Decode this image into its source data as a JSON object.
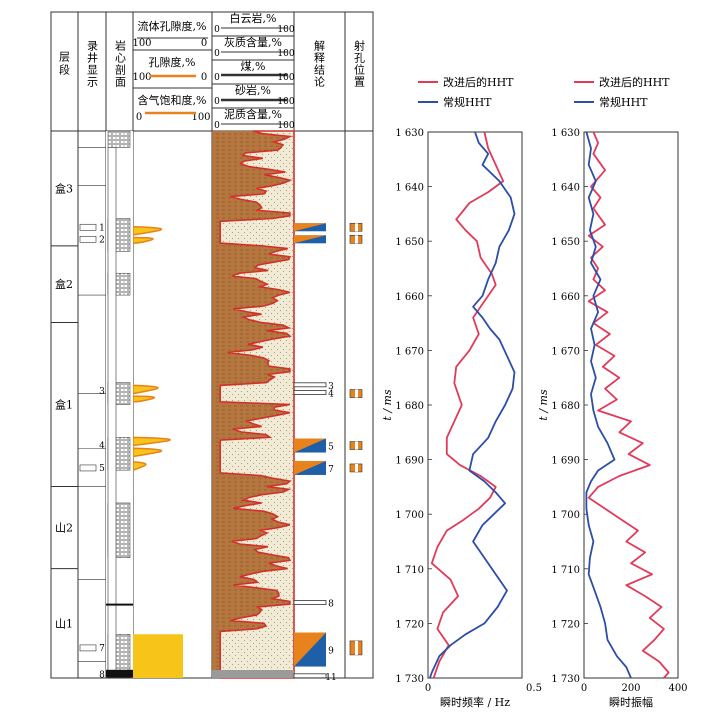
{
  "log_panel": {
    "headers": {
      "layer": "层段",
      "log_display": "录井显示",
      "core": "岩心剖面",
      "fluid_porosity": "流体孔隙度,%",
      "fluid_porosity_min": "100",
      "fluid_porosity_max": "0",
      "porosity": "孔隙度,%",
      "porosity_min": "100",
      "porosity_max": "0",
      "gas_saturation": "含气饱和度,%",
      "gas_saturation_min": "0",
      "gas_saturation_max": "100",
      "dolomite": "白云岩,%",
      "limestone": "灰质含量,%",
      "coal": "煤,%",
      "sandstone": "砂岩,%",
      "mudstone": "泥质含量,%",
      "pct_min": "0",
      "pct_max": "100",
      "interpretation": "解释结论",
      "perforation": "射孔位置"
    },
    "layers": [
      {
        "name": "盒3",
        "top": 1630,
        "bottom": 1651
      },
      {
        "name": "盒2",
        "top": 1651,
        "bottom": 1665
      },
      {
        "name": "盒1",
        "top": 1665,
        "bottom": 1695
      },
      {
        "name": "山2",
        "top": 1695,
        "bottom": 1710
      },
      {
        "name": "山1",
        "top": 1710,
        "bottom": 1730
      }
    ],
    "log_display_numbers": [
      {
        "label": "1",
        "depth": 1647.6
      },
      {
        "label": "2",
        "depth": 1649.8
      },
      {
        "label": "3",
        "depth": 1677.5
      },
      {
        "label": "4",
        "depth": 1687.5
      },
      {
        "label": "5",
        "depth": 1691.6
      },
      {
        "label": "7",
        "depth": 1724.5
      },
      {
        "label": "8",
        "depth": 1729.4
      }
    ],
    "interpretation_numbers": [
      {
        "label": "3",
        "depth": 1676.4
      },
      {
        "label": "4",
        "depth": 1677.8
      },
      {
        "label": "5",
        "depth": 1687.5
      },
      {
        "label": "7",
        "depth": 1691.6
      },
      {
        "label": "8",
        "depth": 1716.2
      },
      {
        "label": "9",
        "depth": 1724.8
      },
      {
        "label": "11",
        "depth": 1729.6
      }
    ],
    "colors": {
      "mud": "#b5773f",
      "sand": "#f1ead4",
      "red_curve": "#d4302a",
      "yellow_fill": "#f7c41a",
      "orange_curve": "#e8821c",
      "blue": "#1f5fa8",
      "gray": "#9a9a9a"
    }
  },
  "chart_data": [
    {
      "type": "line",
      "title": "",
      "xlabel": "瞬时频率 / Hz",
      "ylabel": "t / ms",
      "xlim": [
        0,
        0.5
      ],
      "ylim": [
        1630,
        1730
      ],
      "x_ticks": [
        "0",
        "0.5"
      ],
      "y_ticks": [
        "1 630",
        "1 640",
        "1 650",
        "1 660",
        "1 670",
        "1 680",
        "1 690",
        "1 700",
        "1 710",
        "1 720",
        "1 730"
      ],
      "legend": "top",
      "series": [
        {
          "name": "改进后的HHT",
          "color": "#e23a5a",
          "points": [
            [
              0.3,
              1630
            ],
            [
              0.32,
              1633
            ],
            [
              0.36,
              1636
            ],
            [
              0.4,
              1639
            ],
            [
              0.32,
              1641
            ],
            [
              0.22,
              1643
            ],
            [
              0.15,
              1646
            ],
            [
              0.2,
              1648
            ],
            [
              0.26,
              1650
            ],
            [
              0.28,
              1653
            ],
            [
              0.34,
              1656
            ],
            [
              0.36,
              1658
            ],
            [
              0.3,
              1661
            ],
            [
              0.24,
              1664
            ],
            [
              0.27,
              1667
            ],
            [
              0.22,
              1670
            ],
            [
              0.15,
              1673
            ],
            [
              0.14,
              1676
            ],
            [
              0.18,
              1680
            ],
            [
              0.14,
              1683
            ],
            [
              0.1,
              1686
            ],
            [
              0.1,
              1689
            ],
            [
              0.17,
              1691
            ],
            [
              0.28,
              1693
            ],
            [
              0.36,
              1695
            ],
            [
              0.33,
              1697
            ],
            [
              0.27,
              1699
            ],
            [
              0.19,
              1701
            ],
            [
              0.1,
              1703
            ],
            [
              0.05,
              1706
            ],
            [
              0.02,
              1709
            ],
            [
              0.12,
              1712
            ],
            [
              0.16,
              1715
            ],
            [
              0.08,
              1718
            ],
            [
              0.05,
              1721
            ],
            [
              0.11,
              1724
            ],
            [
              0.06,
              1727
            ],
            [
              0.03,
              1730
            ]
          ]
        },
        {
          "name": "常规HHT",
          "color": "#2b4ea8",
          "points": [
            [
              0.25,
              1630
            ],
            [
              0.27,
              1632
            ],
            [
              0.32,
              1634
            ],
            [
              0.29,
              1636
            ],
            [
              0.38,
              1639
            ],
            [
              0.44,
              1642
            ],
            [
              0.46,
              1645
            ],
            [
              0.43,
              1648
            ],
            [
              0.38,
              1651
            ],
            [
              0.36,
              1654
            ],
            [
              0.32,
              1657
            ],
            [
              0.29,
              1660
            ],
            [
              0.24,
              1662
            ],
            [
              0.29,
              1664
            ],
            [
              0.33,
              1666
            ],
            [
              0.38,
              1668
            ],
            [
              0.42,
              1671
            ],
            [
              0.46,
              1674
            ],
            [
              0.45,
              1677
            ],
            [
              0.41,
              1680
            ],
            [
              0.36,
              1683
            ],
            [
              0.32,
              1686
            ],
            [
              0.24,
              1689
            ],
            [
              0.22,
              1692
            ],
            [
              0.3,
              1694
            ],
            [
              0.36,
              1696
            ],
            [
              0.41,
              1698
            ],
            [
              0.35,
              1700
            ],
            [
              0.29,
              1702
            ],
            [
              0.24,
              1705
            ],
            [
              0.3,
              1708
            ],
            [
              0.36,
              1711
            ],
            [
              0.42,
              1714
            ],
            [
              0.37,
              1717
            ],
            [
              0.3,
              1720
            ],
            [
              0.2,
              1722
            ],
            [
              0.12,
              1724
            ],
            [
              0.06,
              1726
            ],
            [
              0.02,
              1729
            ],
            [
              0.01,
              1730
            ]
          ]
        }
      ]
    },
    {
      "type": "line",
      "title": "",
      "xlabel": "瞬时振幅",
      "ylabel": "t / ms",
      "xlim": [
        0,
        400
      ],
      "ylim": [
        1630,
        1730
      ],
      "x_ticks": [
        "0",
        "200",
        "400"
      ],
      "y_ticks": [
        "1 630",
        "1 640",
        "1 650",
        "1 660",
        "1 670",
        "1 680",
        "1 690",
        "1 700",
        "1 710",
        "1 720",
        "1 730"
      ],
      "legend": "top",
      "series": [
        {
          "name": "改进后的HHT",
          "color": "#e23a5a",
          "points": [
            [
              40,
              1630
            ],
            [
              60,
              1632
            ],
            [
              40,
              1634
            ],
            [
              90,
              1637
            ],
            [
              30,
              1640
            ],
            [
              70,
              1642
            ],
            [
              40,
              1644
            ],
            [
              90,
              1647
            ],
            [
              20,
              1649
            ],
            [
              80,
              1651
            ],
            [
              30,
              1653
            ],
            [
              60,
              1655
            ],
            [
              40,
              1657
            ],
            [
              90,
              1659
            ],
            [
              20,
              1661
            ],
            [
              100,
              1663
            ],
            [
              40,
              1665
            ],
            [
              110,
              1667
            ],
            [
              50,
              1669
            ],
            [
              130,
              1671
            ],
            [
              80,
              1673
            ],
            [
              150,
              1675
            ],
            [
              90,
              1677
            ],
            [
              140,
              1679
            ],
            [
              60,
              1681
            ],
            [
              200,
              1683
            ],
            [
              150,
              1685
            ],
            [
              250,
              1687
            ],
            [
              190,
              1689
            ],
            [
              280,
              1691
            ],
            [
              150,
              1693
            ],
            [
              60,
              1695
            ],
            [
              20,
              1697
            ],
            [
              90,
              1699
            ],
            [
              160,
              1701
            ],
            [
              230,
              1703
            ],
            [
              180,
              1705
            ],
            [
              260,
              1707
            ],
            [
              200,
              1709
            ],
            [
              290,
              1711
            ],
            [
              180,
              1713
            ],
            [
              260,
              1715
            ],
            [
              330,
              1717
            ],
            [
              280,
              1719
            ],
            [
              340,
              1721
            ],
            [
              300,
              1723
            ],
            [
              250,
              1725
            ],
            [
              320,
              1727
            ],
            [
              360,
              1729
            ],
            [
              340,
              1730
            ]
          ]
        },
        {
          "name": "常规HHT",
          "color": "#2b4ea8",
          "points": [
            [
              10,
              1630
            ],
            [
              30,
              1633
            ],
            [
              20,
              1636
            ],
            [
              50,
              1639
            ],
            [
              20,
              1642
            ],
            [
              40,
              1645
            ],
            [
              25,
              1648
            ],
            [
              50,
              1651
            ],
            [
              30,
              1654
            ],
            [
              70,
              1657
            ],
            [
              40,
              1660
            ],
            [
              60,
              1663
            ],
            [
              30,
              1666
            ],
            [
              45,
              1669
            ],
            [
              30,
              1672
            ],
            [
              50,
              1675
            ],
            [
              30,
              1678
            ],
            [
              40,
              1681
            ],
            [
              60,
              1684
            ],
            [
              100,
              1687
            ],
            [
              130,
              1690
            ],
            [
              60,
              1692
            ],
            [
              30,
              1694
            ],
            [
              10,
              1696
            ],
            [
              10,
              1699
            ],
            [
              20,
              1702
            ],
            [
              40,
              1705
            ],
            [
              25,
              1708
            ],
            [
              20,
              1711
            ],
            [
              45,
              1714
            ],
            [
              70,
              1717
            ],
            [
              90,
              1720
            ],
            [
              100,
              1723
            ],
            [
              140,
              1726
            ],
            [
              180,
              1728
            ],
            [
              200,
              1730
            ]
          ]
        }
      ]
    }
  ]
}
